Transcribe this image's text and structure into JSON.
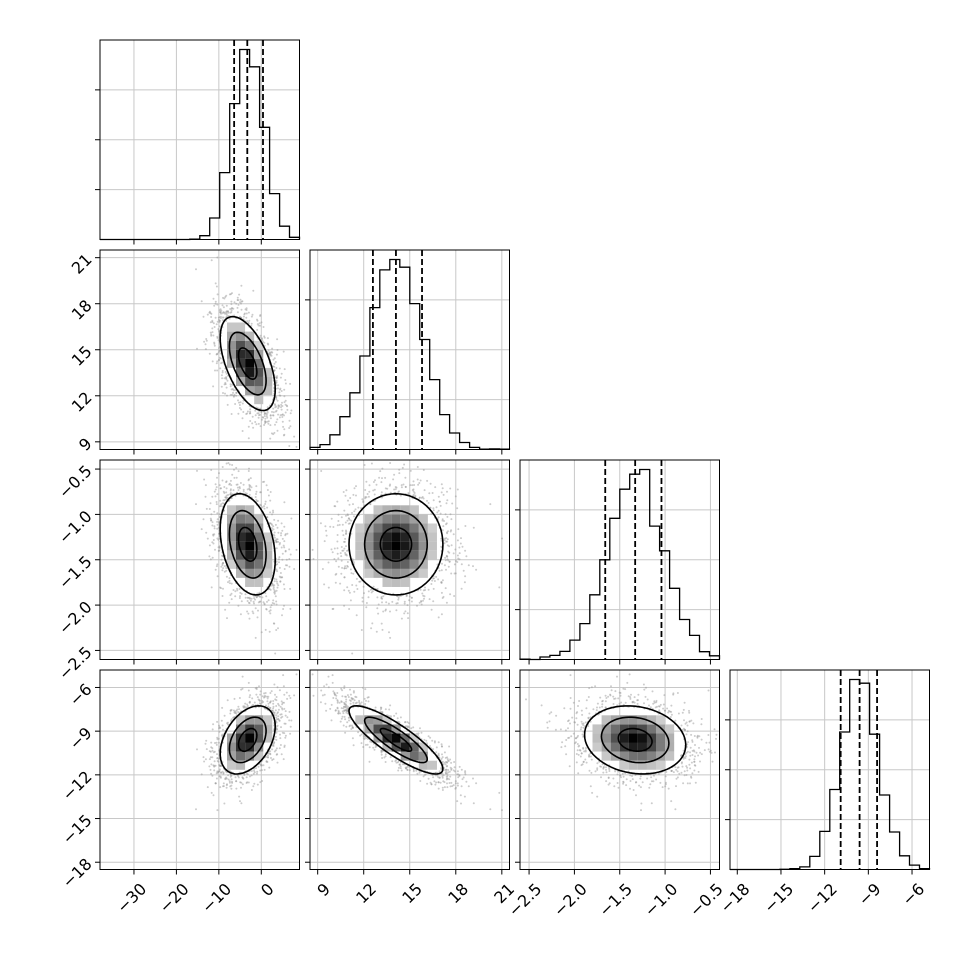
{
  "chart_data": {
    "type": "corner",
    "title": "",
    "parameters": [
      "",
      "",
      "",
      ""
    ],
    "ranges": [
      [
        -38,
        9
      ],
      [
        8.5,
        21.5
      ],
      [
        -2.6,
        -0.4
      ],
      [
        -18.5,
        -4.8
      ]
    ],
    "diag_ticks": [
      [
        -30,
        -20,
        -10,
        0
      ],
      [
        9,
        12,
        15,
        18,
        21
      ],
      [
        -2.5,
        -2.0,
        -1.5,
        -1.0,
        -0.5
      ],
      [
        -18,
        -15,
        -12,
        -9,
        -6
      ]
    ],
    "diag_tick_labels": [
      [
        "−30",
        "−20",
        "−10",
        "0"
      ],
      [
        "9",
        "12",
        "15",
        "18",
        "21"
      ],
      [
        "−2.5",
        "−2.0",
        "−1.5",
        "−1.0",
        "−0.5"
      ],
      [
        "−18",
        "−15",
        "−12",
        "−9",
        "−6"
      ]
    ],
    "y_tick_values": [
      [],
      [
        9,
        12,
        15,
        18,
        21
      ],
      [
        -2.5,
        -2.0,
        -1.5,
        -1.0,
        -0.5
      ],
      [
        -18,
        -15,
        -12,
        -9,
        -6
      ]
    ],
    "y_tick_labels": [
      [],
      [
        "9",
        "12",
        "15",
        "18",
        "21"
      ],
      [
        "−2.5",
        "−2.0",
        "−1.5",
        "−1.0",
        "−0.5"
      ],
      [
        "−18",
        "−15",
        "−12",
        "−9",
        "−6"
      ]
    ],
    "hist_gridlines": 3,
    "means": [
      -3.2,
      14.1,
      -1.33,
      -9.6
    ],
    "sds": [
      3.6,
      1.7,
      0.31,
      1.3
    ],
    "quantiles_16_50_84": [
      [
        -6.4,
        -3.3,
        0.4
      ],
      [
        12.6,
        14.1,
        15.8
      ],
      [
        -1.66,
        -1.33,
        -1.04
      ],
      [
        -10.9,
        -9.6,
        -8.4
      ]
    ],
    "correlation": [
      [
        1.0,
        -0.55,
        -0.3,
        0.4
      ],
      [
        -0.55,
        1.0,
        0.0,
        -0.85
      ],
      [
        -0.3,
        0.0,
        1.0,
        -0.15
      ],
      [
        0.4,
        -0.85,
        -0.15,
        1.0
      ]
    ],
    "hist_bins": 20,
    "grid": true,
    "colors": {
      "points": "#9a9a9a",
      "line": "#000000",
      "grid": "#c8c8c8",
      "density_dark": "#000000"
    }
  }
}
